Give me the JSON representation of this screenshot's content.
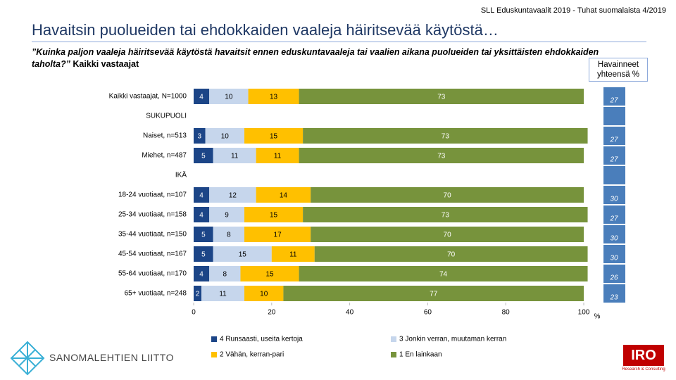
{
  "header": {
    "source": "SLL Eduskuntavaalit 2019 - Tuhat suomalaista 4/2019"
  },
  "chart_data": {
    "type": "stacked_barh",
    "title": "Havaitsin puolueiden tai ehdokkaiden vaaleja häiritsevää käytöstä…",
    "question": "”Kuinka paljon vaaleja häiritsevää käytöstä havaitsit ennen eduskuntavaaleja tai vaalien aikana puolueiden tai yksittäisten ehdokkaiden taholta?”",
    "subtitle": "Kaikki vastaajat",
    "categories": [
      "Kaikki vastaajat, N=1000",
      "SUKUPUOLI",
      "Naiset, n=513",
      "Miehet, n=487",
      "IKÄ",
      "18-24 vuotiaat, n=107",
      "25-34 vuotiaat, n=158",
      "35-44 vuotiaat, n=150",
      "45-54 vuotiaat, n=167",
      "55-64 vuotiaat, n=170",
      "65+ vuotiaat, n=248"
    ],
    "series": [
      {
        "name": "4 Runsaasti, useita kertoja",
        "color": "#1c4587",
        "values": [
          4,
          null,
          3,
          5,
          null,
          4,
          4,
          5,
          5,
          4,
          2
        ]
      },
      {
        "name": "3 Jonkin verran, muutaman kerran",
        "color": "#c6d6ec",
        "values": [
          10,
          null,
          10,
          11,
          null,
          12,
          9,
          8,
          15,
          8,
          11
        ]
      },
      {
        "name": "2 Vähän, kerran-pari",
        "color": "#ffc000",
        "values": [
          13,
          null,
          15,
          11,
          null,
          14,
          15,
          17,
          11,
          15,
          10
        ]
      },
      {
        "name": "1 En lainkaan",
        "color": "#77933c",
        "values": [
          73,
          null,
          73,
          73,
          null,
          70,
          73,
          70,
          70,
          74,
          77
        ]
      }
    ],
    "xlim": [
      0,
      100
    ],
    "xticks": [
      0,
      20,
      40,
      60,
      80,
      100
    ],
    "x_unit": "%",
    "totals": {
      "title": "Havainneet yhteensä %",
      "color": "#4a7ebb",
      "values": [
        27,
        null,
        27,
        27,
        null,
        30,
        27,
        30,
        30,
        26,
        23
      ]
    }
  },
  "logos": {
    "left": "SANOMALEHTIEN LIITTO",
    "right": "IRO",
    "right_sub": "Research & Consulting"
  }
}
